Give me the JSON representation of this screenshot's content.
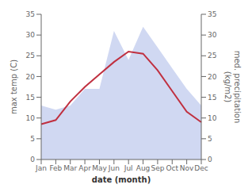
{
  "chart_data": {
    "type": "line",
    "x_label": "date (month)",
    "y_label": "max temp (C)",
    "y2_label": "med. precipitation\n(kg/m2)",
    "categories": [
      "Jan",
      "Feb",
      "Mar",
      "Apr",
      "May",
      "Jun",
      "Jul",
      "Aug",
      "Sep",
      "Oct",
      "Nov",
      "Dec"
    ],
    "series": [
      {
        "type": "area",
        "axis": "y2",
        "color": "#aab8e8",
        "values": [
          13,
          12,
          13,
          17,
          17,
          31,
          24,
          32,
          27,
          22,
          17,
          13
        ]
      },
      {
        "type": "line",
        "axis": "y",
        "color": "#c03040",
        "values": [
          8.5,
          9.5,
          14.0,
          17.5,
          20.5,
          23.5,
          26.0,
          25.5,
          21.5,
          16.5,
          11.5,
          9.0
        ]
      }
    ],
    "ylim": [
      0,
      35
    ],
    "yticks": [
      0,
      5,
      10,
      15,
      20,
      25,
      30,
      35
    ],
    "y2lim": [
      0,
      35
    ],
    "y2ticks": [
      0,
      5,
      10,
      15,
      20,
      25,
      30,
      35
    ],
    "grid": false
  }
}
